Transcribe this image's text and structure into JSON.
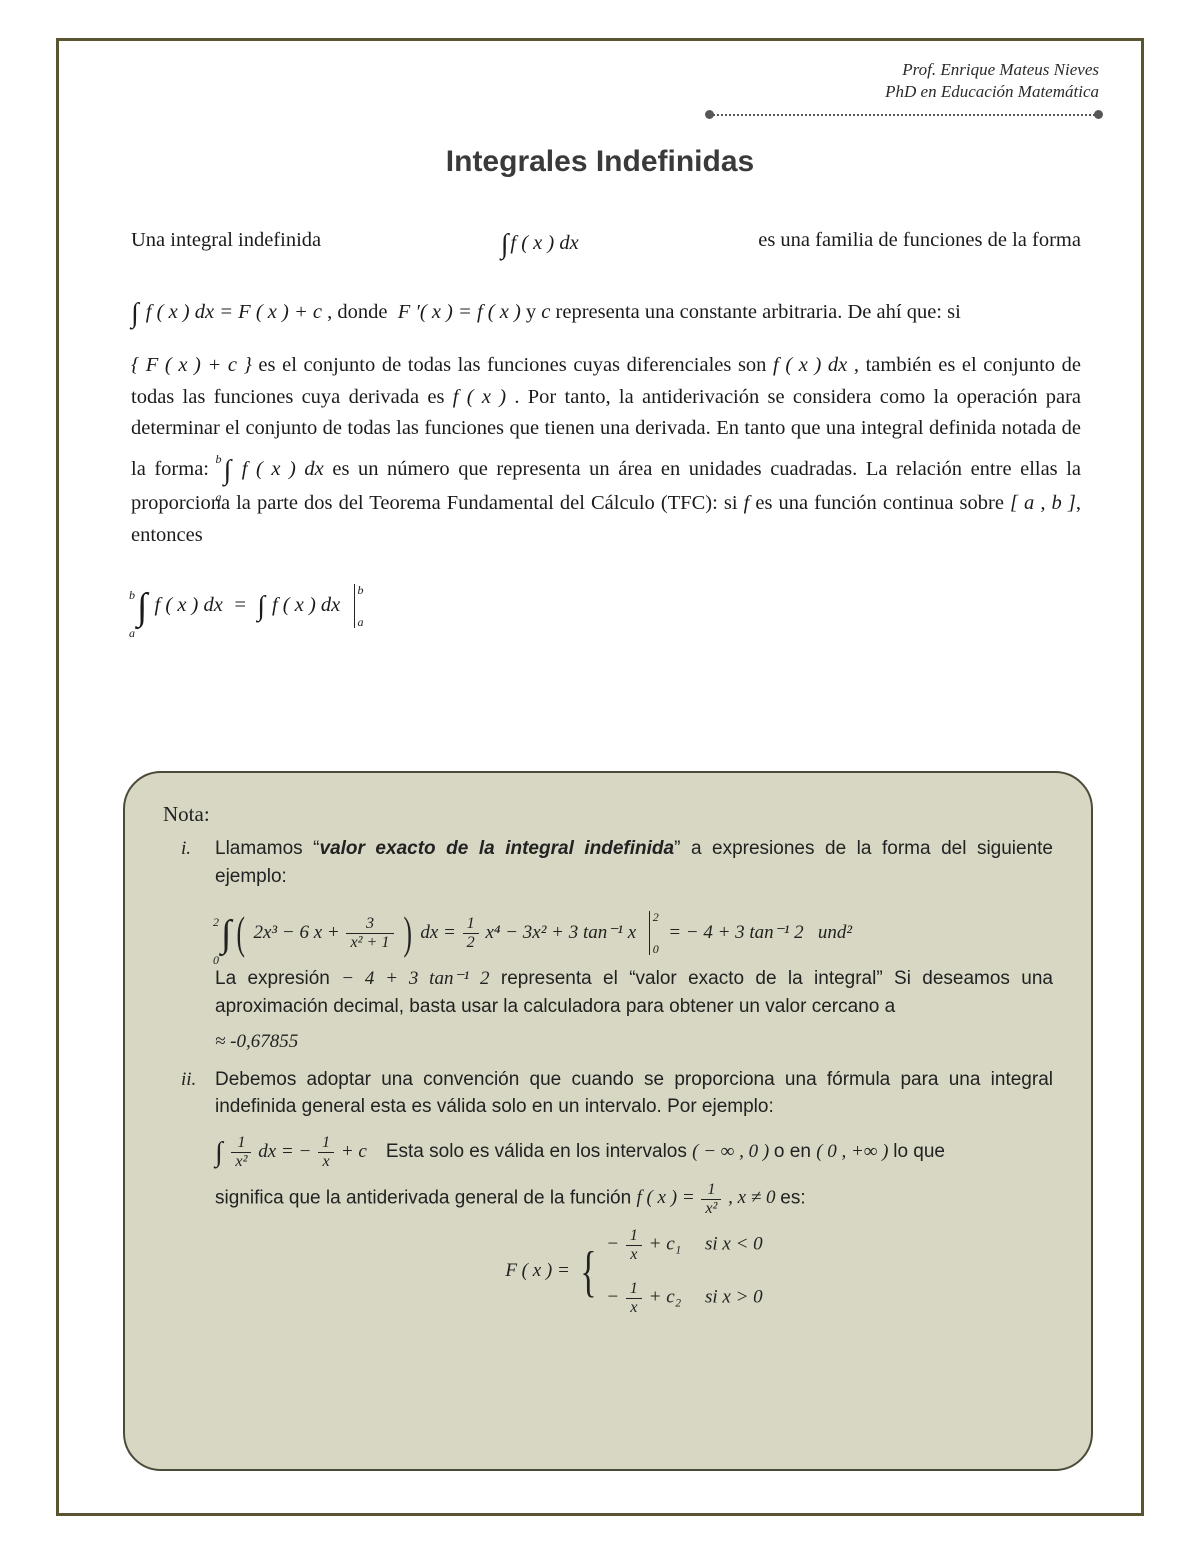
{
  "colors": {
    "border": "#595533",
    "page_bg": "#ffffff",
    "note_bg": "#d7d7c3",
    "note_border": "#4b4b3a",
    "title_color": "#3a3a3a",
    "text_color": "#1b1b1b",
    "header_dot": "#575757"
  },
  "typography": {
    "title_font": "Arial",
    "title_size_pt": 22,
    "body_font": "Georgia / Times",
    "body_size_pt": 15,
    "note_font": "Arial",
    "note_size_pt": 14
  },
  "header": {
    "line1": "Prof. Enrique Mateus Nieves",
    "line2": "PhD en Educación Matemática"
  },
  "title": "Integrales Indefinidas",
  "para1": {
    "pre": "Una integral indefinida",
    "eq": "∫ f ( x ) dx",
    "post": "es una familia de funciones de la forma"
  },
  "para2": {
    "eq1": "∫ f ( x ) dx = F ( x ) + c",
    "mid1": ", donde",
    "eq2": "F ′( x ) = f ( x )",
    "mid2": " y ",
    "c": "c",
    "post": " representa una constante arbitraria. De ahí que: si"
  },
  "para3": {
    "set": "{ F ( x ) + c }",
    "t1": " es el conjunto de todas las funciones cuyas diferenciales son ",
    "fx_dx": "f ( x ) dx",
    "t2": " , también es el conjunto de todas las funciones cuya derivada es ",
    "fx": "f ( x )",
    "t3": " . Por tanto, la antiderivación se considera como la operación para determinar el conjunto de todas las funciones que tienen una derivada. En tanto que una integral definida notada de la forma: ",
    "int_ab": "∫ f ( x ) dx",
    "lim_a": "a",
    "lim_b": "b",
    "t4": " es un número que representa un área en unidades cuadradas. La relación entre ellas la proporciona la parte dos del Teorema Fundamental del Cálculo (TFC): si ",
    "f": "f",
    "t5": " es una función continua sobre ",
    "interval": "[ a , b ]",
    "t6": ", entonces"
  },
  "para4": {
    "lhs_a": "a",
    "lhs_b": "b",
    "lhs": "∫ f ( x ) dx = ∫ f ( x ) dx",
    "bar_b": "b",
    "bar_a": "a"
  },
  "note": {
    "heading": "Nota:",
    "i_marker": "i.",
    "ii_marker": "ii.",
    "i": {
      "t1": "Llamamos “",
      "bold": "valor exacto de la integral indefinida",
      "t2": "” a expresiones de la forma del siguiente ejemplo:",
      "eq_lhs_lo": "0",
      "eq_lhs_hi": "2",
      "integrand": "2x³ − 6 x +",
      "frac_num": "3",
      "frac_den": "x² + 1",
      "dx": "dx =",
      "rhs1_num": "1",
      "rhs1_den": "2",
      "rhs1_tail": "x⁴ − 3x² + 3 tan⁻¹ x",
      "eval_lo": "0",
      "eval_hi": "2",
      "rhs2": "= − 4 + 3 tan⁻¹ 2",
      "und": "und²",
      "t3a": "La expresión ",
      "expr": "− 4 + 3 tan⁻¹ 2",
      "t3b": " representa el “valor exacto de la integral” Si deseamos una aproximación decimal, basta usar la calculadora para obtener un valor cercano a",
      "approx": "≈ -0,67855"
    },
    "ii": {
      "t1": "Debemos adoptar una convención que cuando se proporciona una fórmula para una integral indefinida general esta es válida solo en un intervalo. Por ejemplo:",
      "eq_int": "∫",
      "f1_num": "1",
      "f1_den": "x²",
      "dx": "dx = −",
      "f2_num": "1",
      "f2_den": "x",
      "plus_c": " + c",
      "t2a": "Esta solo es válida en los intervalos ",
      "int1": "( − ∞ , 0 )",
      "or": " o en ",
      "int2": "( 0 , +∞ )",
      "t2b": " lo que",
      "t3a": "significa que la antiderivada general de la función ",
      "fx_eq": "f ( x ) =",
      "f3_num": "1",
      "f3_den": "x²",
      "cond": ", x ≠ 0",
      "t3b": " es:",
      "Fx": "F ( x ) =",
      "row1_frac_num": "1",
      "row1_frac_den": "x",
      "row1_c": " + c₁",
      "row1_si": "si x < 0",
      "row2_frac_num": "1",
      "row2_frac_den": "x",
      "row2_c": " + c₂",
      "row2_si": "si x > 0"
    }
  }
}
